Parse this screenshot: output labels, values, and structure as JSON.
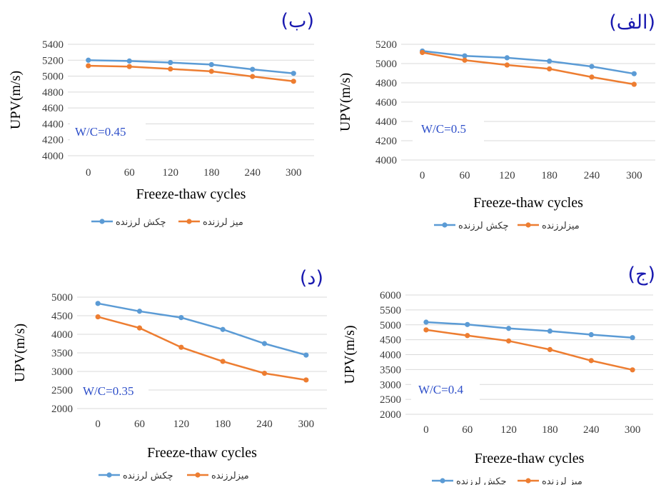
{
  "colors": {
    "series1": "#5b9bd5",
    "series2": "#ed7d31",
    "panel_label": "#1a1ab0",
    "annotation": "#2e4fc9",
    "grid": "#d9d9d9"
  },
  "chart_data": [
    {
      "type": "line",
      "panel_label": "(ب)",
      "annotation": "W/C=0.45",
      "xlabel": "Freeze-thaw cycles",
      "ylabel": "UPV(m/s)",
      "categories": [
        "0",
        "60",
        "120",
        "180",
        "240",
        "300"
      ],
      "yticks": [
        "4000",
        "4200",
        "4400",
        "4600",
        "4800",
        "5000",
        "5200",
        "5400"
      ],
      "ylim": [
        4000,
        5400
      ],
      "grid": true,
      "legend_position": "bottom",
      "series": [
        {
          "name": "چکش لرزنده",
          "color": "#5b9bd5",
          "values": [
            5200,
            5190,
            5170,
            5145,
            5085,
            5035
          ]
        },
        {
          "name": "میز لرزنده",
          "color": "#ed7d31",
          "values": [
            5130,
            5120,
            5090,
            5060,
            4995,
            4935
          ]
        }
      ]
    },
    {
      "type": "line",
      "panel_label": "(الف)",
      "annotation": "W/C=0.5",
      "xlabel": "Freeze-thaw cycles",
      "ylabel": "UPV(m/s)",
      "categories": [
        "0",
        "60",
        "120",
        "180",
        "240",
        "300"
      ],
      "yticks": [
        "4000",
        "4200",
        "4400",
        "4600",
        "4800",
        "5000",
        "5200"
      ],
      "ylim": [
        4000,
        5200
      ],
      "grid": true,
      "legend_position": "bottom",
      "series": [
        {
          "name": "چکش لرزنده",
          "color": "#5b9bd5",
          "values": [
            5130,
            5080,
            5060,
            5025,
            4970,
            4895
          ]
        },
        {
          "name": "میزلرزنده",
          "color": "#ed7d31",
          "values": [
            5115,
            5035,
            4985,
            4945,
            4860,
            4785
          ]
        }
      ]
    },
    {
      "type": "line",
      "panel_label": "(د)",
      "annotation": "W/C=0.35",
      "xlabel": "Freeze-thaw cycles",
      "ylabel": "UPV(m/s)",
      "categories": [
        "0",
        "60",
        "120",
        "180",
        "240",
        "300"
      ],
      "yticks": [
        "2000",
        "2500",
        "3000",
        "3500",
        "4000",
        "4500",
        "5000"
      ],
      "ylim": [
        2000,
        5000
      ],
      "grid": true,
      "legend_position": "bottom",
      "series": [
        {
          "name": "چکش لرزنده",
          "color": "#5b9bd5",
          "values": [
            4830,
            4620,
            4450,
            4130,
            3750,
            3440
          ]
        },
        {
          "name": "میزلرزنده",
          "color": "#ed7d31",
          "values": [
            4470,
            4170,
            3650,
            3270,
            2950,
            2770
          ]
        }
      ]
    },
    {
      "type": "line",
      "panel_label": "(ج)",
      "annotation": "W/C=0.4",
      "xlabel": "Freeze-thaw cycles",
      "ylabel": "UPV(m/s)",
      "categories": [
        "0",
        "60",
        "120",
        "180",
        "240",
        "300"
      ],
      "yticks": [
        "2000",
        "2500",
        "3000",
        "3500",
        "4000",
        "4500",
        "5000",
        "5500",
        "6000"
      ],
      "ylim": [
        2000,
        6000
      ],
      "grid": true,
      "legend_position": "bottom",
      "series": [
        {
          "name": "چکش لرزنده",
          "color": "#5b9bd5",
          "values": [
            5090,
            5010,
            4880,
            4790,
            4670,
            4570
          ]
        },
        {
          "name": "میز لرزنده",
          "color": "#ed7d31",
          "values": [
            4830,
            4640,
            4460,
            4170,
            3800,
            3490
          ]
        }
      ]
    }
  ]
}
